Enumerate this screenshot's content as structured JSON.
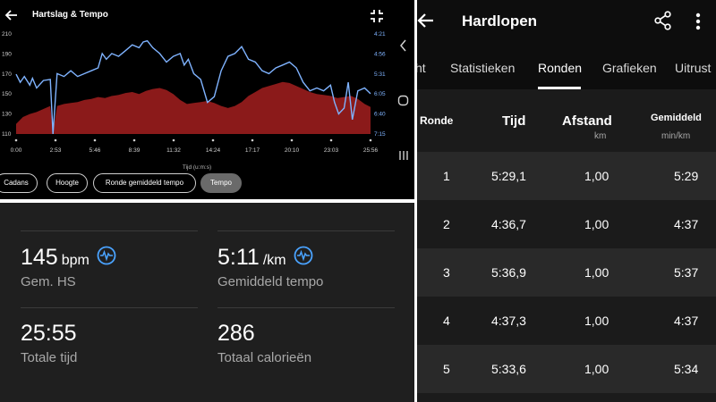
{
  "chart_screen": {
    "title": "Hartslag & Tempo",
    "x_axis_title": "Tijd (u:m:s)",
    "chips": [
      "Cadans",
      "Hoogte",
      "Ronde gemiddeld tempo",
      "Tempo"
    ],
    "active_chip": "Tempo",
    "icons": [
      "back-arrow-icon",
      "fullscreen-exit-icon",
      "chevron-left-icon",
      "circle-home-icon",
      "recents-icon"
    ]
  },
  "chart_data": {
    "type": "area",
    "title": "Hartslag & Tempo",
    "xlabel": "Tijd (u:m:s)",
    "x_ticks": [
      "0:00",
      "2:53",
      "5:46",
      "8:39",
      "11:32",
      "14:24",
      "17:17",
      "20:10",
      "23:03",
      "25:56"
    ],
    "y_left_ticks": [
      "210",
      "190",
      "170",
      "150",
      "130",
      "110"
    ],
    "y_right_ticks": [
      "4:21",
      "4:56",
      "5:31",
      "6:05",
      "6:40",
      "7:15"
    ],
    "ylim_left": [
      110,
      210
    ],
    "series": [
      {
        "name": "Hartslag",
        "axis": "left",
        "color": "#8b1a1a",
        "x": [
          0,
          0.5,
          1,
          1.5,
          2,
          2.5,
          2.7,
          3,
          3.5,
          4,
          4.5,
          5,
          5.5,
          6,
          6.5,
          7,
          7.5,
          8,
          8.5,
          9,
          9.5,
          10,
          10.5,
          11,
          11.5,
          12,
          12.5,
          13,
          13.5,
          14,
          14.5,
          15,
          15.5,
          16,
          16.5,
          17,
          17.5,
          18,
          18.5,
          19,
          19.5,
          20,
          20.5,
          21,
          21.5,
          22,
          22.5,
          23,
          23.5,
          24,
          24.5,
          25,
          25.5,
          25.93
        ],
        "values": [
          120,
          127,
          130,
          132,
          135,
          138,
          112,
          138,
          140,
          141,
          142,
          144,
          145,
          147,
          146,
          148,
          149,
          151,
          152,
          150,
          153,
          155,
          156,
          154,
          150,
          144,
          140,
          141,
          142,
          143,
          141,
          138,
          136,
          138,
          142,
          148,
          152,
          156,
          158,
          160,
          162,
          161,
          158,
          155,
          152,
          150,
          149,
          148,
          146,
          147,
          148,
          145,
          140,
          137
        ]
      },
      {
        "name": "Tempo",
        "axis": "right",
        "color": "#7fb3ff",
        "ylim": [
          "4:21",
          "7:15"
        ],
        "x": [
          0,
          0.3,
          0.6,
          1,
          1.2,
          1.5,
          2,
          2.5,
          2.7,
          3,
          3.5,
          4,
          4.5,
          5,
          5.5,
          6,
          6.3,
          6.6,
          7,
          7.5,
          8,
          8.5,
          9,
          9.3,
          9.6,
          10,
          10.5,
          11,
          11.5,
          12,
          12.3,
          12.6,
          13,
          13.5,
          14,
          14.5,
          15,
          15.5,
          16,
          16.5,
          17,
          17.5,
          18,
          18.5,
          19,
          19.5,
          20,
          20.5,
          21,
          21.5,
          22,
          22.5,
          23,
          23.3,
          23.6,
          24,
          24.3,
          24.6,
          25,
          25.5,
          25.93
        ],
        "values": [
          "5:31",
          "5:45",
          "5:35",
          "5:50",
          "5:38",
          "5:55",
          "5:42",
          "5:40",
          "7:15",
          "5:30",
          "5:35",
          "5:25",
          "5:35",
          "5:30",
          "5:25",
          "5:20",
          "4:55",
          "5:05",
          "4:55",
          "5:00",
          "4:50",
          "4:40",
          "4:45",
          "4:35",
          "4:33",
          "4:45",
          "4:55",
          "5:10",
          "5:00",
          "4:55",
          "5:15",
          "5:05",
          "5:30",
          "5:40",
          "6:20",
          "6:10",
          "5:25",
          "5:00",
          "4:55",
          "4:43",
          "5:05",
          "5:10",
          "5:25",
          "5:30",
          "5:20",
          "5:15",
          "5:10",
          "5:20",
          "5:45",
          "6:00",
          "5:55",
          "6:00",
          "5:50",
          "6:20",
          "6:40",
          "6:30",
          "5:45",
          "6:50",
          "6:00",
          "5:55",
          "6:05"
        ]
      }
    ],
    "grid": false,
    "legend": "none"
  },
  "summary": {
    "stats": [
      {
        "value": "145",
        "unit": "bpm",
        "label": "Gem. HS",
        "icon": "heart-rate-icon"
      },
      {
        "value": "5:11",
        "unit": "/km",
        "label": "Gemiddeld tempo",
        "icon": "heart-rate-icon"
      },
      {
        "value": "25:55",
        "unit": "",
        "label": "Totale tijd"
      },
      {
        "value": "286",
        "unit": "",
        "label": "Totaal calorieën"
      }
    ]
  },
  "laps_screen": {
    "title": "Hardlopen",
    "tabs": [
      "ht",
      "Statistieken",
      "Ronden",
      "Grafieken",
      "Uitrust"
    ],
    "active_tab": "Ronden",
    "columns": {
      "ronde": "Ronde",
      "tijd": "Tijd",
      "afstand": "Afstand",
      "afstand_unit": "km",
      "gemiddeld": "Gemiddeld",
      "gemiddeld_unit": "min/km"
    },
    "rows": [
      {
        "ronde": "1",
        "tijd": "5:29,1",
        "afstand": "1,00",
        "gemiddeld": "5:29"
      },
      {
        "ronde": "2",
        "tijd": "4:36,7",
        "afstand": "1,00",
        "gemiddeld": "4:37"
      },
      {
        "ronde": "3",
        "tijd": "5:36,9",
        "afstand": "1,00",
        "gemiddeld": "5:37"
      },
      {
        "ronde": "4",
        "tijd": "4:37,3",
        "afstand": "1,00",
        "gemiddeld": "4:37"
      },
      {
        "ronde": "5",
        "tijd": "5:33,6",
        "afstand": "1,00",
        "gemiddeld": "5:34"
      }
    ]
  },
  "colors": {
    "heart_rate_fill": "#8b1a1a",
    "tempo_line": "#7fb3ff",
    "accent_blue": "#4aa3ff"
  }
}
